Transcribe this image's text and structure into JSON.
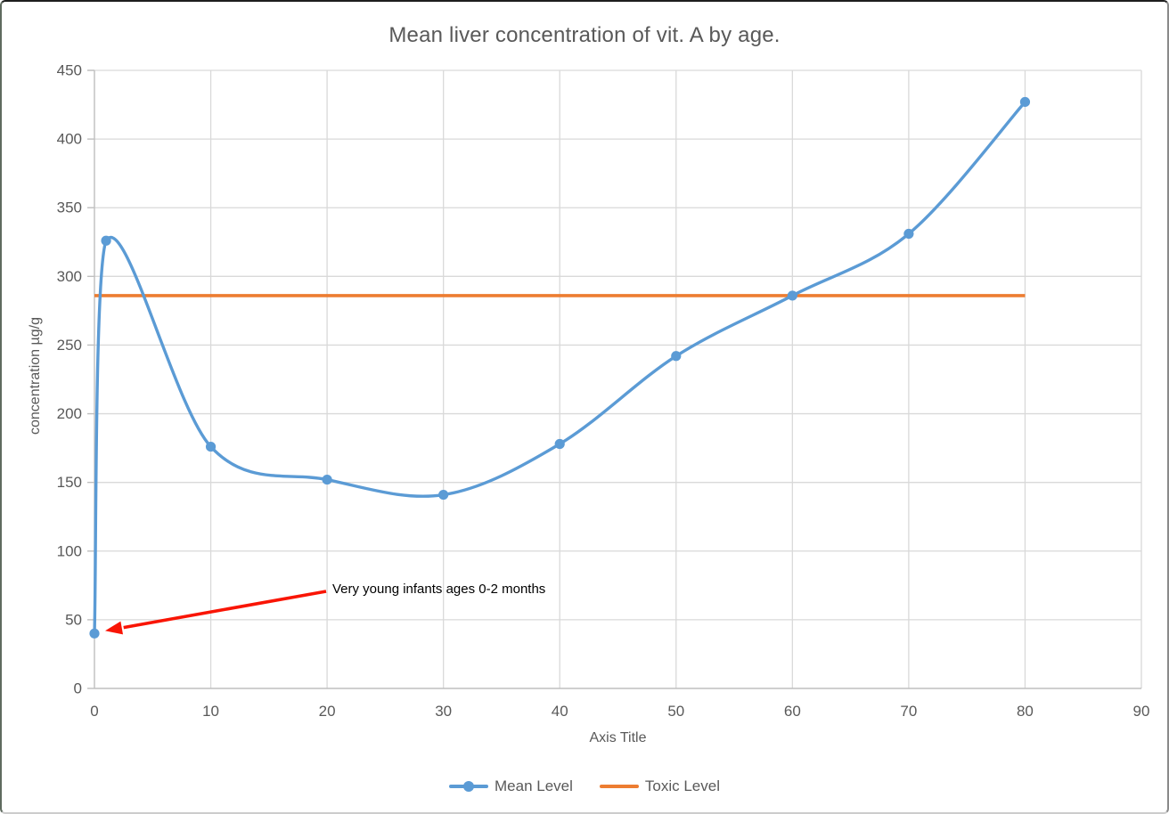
{
  "chart_data": {
    "type": "line",
    "title": "Mean liver concentration of vit. A by age.",
    "xlabel": "Axis Title",
    "ylabel": "concentration µg/g",
    "xlim": [
      0,
      90
    ],
    "ylim": [
      0,
      450
    ],
    "x_ticks": [
      0,
      10,
      20,
      30,
      40,
      50,
      60,
      70,
      80,
      90
    ],
    "y_ticks": [
      0,
      50,
      100,
      150,
      200,
      250,
      300,
      350,
      400,
      450
    ],
    "grid": true,
    "legend_position": "bottom-center",
    "series": [
      {
        "name": "Mean Level",
        "color": "#5B9BD5",
        "marker": "circle",
        "smooth": true,
        "points": [
          [
            0,
            40
          ],
          [
            1,
            326
          ],
          [
            10,
            176
          ],
          [
            20,
            152
          ],
          [
            30,
            141
          ],
          [
            40,
            178
          ],
          [
            50,
            242
          ],
          [
            60,
            286
          ],
          [
            70,
            331
          ],
          [
            80,
            427
          ]
        ]
      },
      {
        "name": "Toxic Level",
        "color": "#ED7D31",
        "marker": "none",
        "smooth": false,
        "points": [
          [
            0,
            286
          ],
          [
            80,
            286
          ]
        ]
      }
    ],
    "annotation": {
      "text": "Very young infants ages 0-2 months",
      "text_color": "#000000",
      "arrow_color": "#F91505",
      "points_to": [
        0,
        40
      ]
    },
    "colors": {
      "title_text": "#595959",
      "tick_text": "#595959",
      "gridline": "#D9D9D9",
      "axis_line": "#BFBFBF"
    }
  }
}
